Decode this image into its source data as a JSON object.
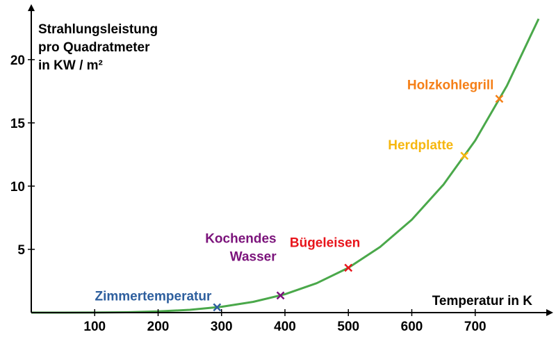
{
  "chart_data": {
    "type": "line",
    "title": "",
    "ylabel_lines": [
      "Strahlungsleistung",
      "pro Quadratmeter",
      "in KW / m²"
    ],
    "xlabel": "Temperatur in K",
    "xlim": [
      0,
      800
    ],
    "ylim": [
      0,
      24
    ],
    "xticks": [
      100,
      200,
      300,
      400,
      500,
      600,
      700
    ],
    "yticks": [
      5,
      10,
      15,
      20
    ],
    "grid": false,
    "legend": "none",
    "series": [
      {
        "color": "#4aa84a",
        "x": [
          0,
          50,
          100,
          150,
          200,
          250,
          300,
          350,
          400,
          450,
          500,
          550,
          600,
          650,
          700,
          750,
          800
        ],
        "y": [
          0.0,
          0.0004,
          0.0057,
          0.0287,
          0.0907,
          0.2215,
          0.4593,
          0.8509,
          1.4515,
          2.325,
          3.5438,
          5.1886,
          7.3483,
          10.1205,
          13.6111,
          17.9341,
          23.2243
        ]
      }
    ],
    "annotations": [
      {
        "label": "Zimmertemperatur",
        "x": 293,
        "y": 0.42,
        "color": "#2e5f9e",
        "anchor": "end",
        "dx": -8,
        "dy": -10,
        "lines": [
          "Zimmertemperatur"
        ]
      },
      {
        "label": "Kochendes Wasser",
        "x": 393,
        "y": 1.35,
        "color": "#7b137b",
        "anchor": "end",
        "dx": -6,
        "dy": -50,
        "lines": [
          "Kochendes",
          "Wasser"
        ]
      },
      {
        "label": "Bügeleisen",
        "x": 500,
        "y": 3.54,
        "color": "#e8141b",
        "anchor": "end",
        "dx": 17,
        "dy": -30,
        "lines": [
          "Bügeleisen"
        ]
      },
      {
        "label": "Herdplatte",
        "x": 683,
        "y": 12.4,
        "color": "#f6b70f",
        "anchor": "end",
        "dx": -16,
        "dy": -9,
        "lines": [
          "Herdplatte"
        ]
      },
      {
        "label": "Holzkohlegrill",
        "x": 738,
        "y": 16.9,
        "color": "#f57f17",
        "anchor": "end",
        "dx": -8,
        "dy": -14,
        "lines": [
          "Holzkohlegrill"
        ]
      }
    ]
  }
}
